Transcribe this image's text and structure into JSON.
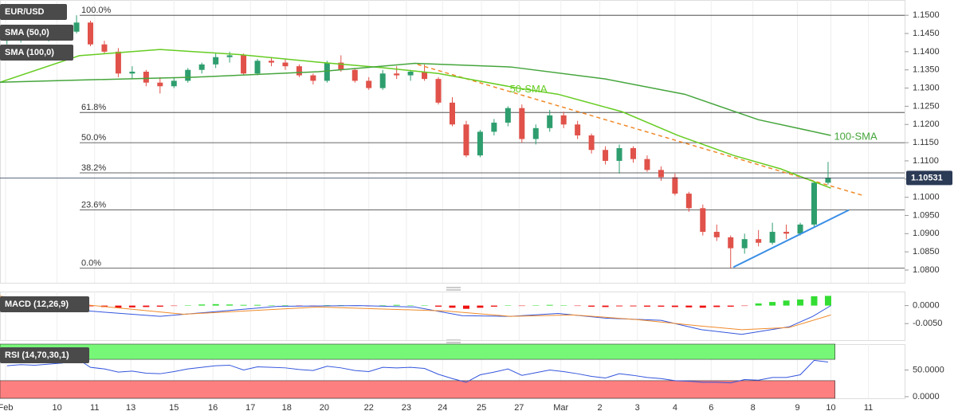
{
  "chart_data": [
    {
      "type": "candlestick",
      "title": "EUR/USD",
      "xlim": [
        -0.5,
        64.5
      ],
      "xticks": [
        {
          "value": -0.1,
          "label": "Feb"
        },
        {
          "value": 3.6,
          "label": "10"
        },
        {
          "value": 6.3,
          "label": "11"
        },
        {
          "value": 8.9,
          "label": "13"
        },
        {
          "value": 12.0,
          "label": "15"
        },
        {
          "value": 14.8,
          "label": "16"
        },
        {
          "value": 17.5,
          "label": "17"
        },
        {
          "value": 20.1,
          "label": "18"
        },
        {
          "value": 22.8,
          "label": "20"
        },
        {
          "value": 26.0,
          "label": "22"
        },
        {
          "value": 28.7,
          "label": "23"
        },
        {
          "value": 31.3,
          "label": "24"
        },
        {
          "value": 34.1,
          "label": "25"
        },
        {
          "value": 36.8,
          "label": "27"
        },
        {
          "value": 39.8,
          "label": "Mar"
        },
        {
          "value": 42.6,
          "label": "2"
        },
        {
          "value": 45.3,
          "label": "3"
        },
        {
          "value": 48.0,
          "label": "4"
        },
        {
          "value": 50.6,
          "label": "6"
        },
        {
          "value": 53.6,
          "label": "8"
        },
        {
          "value": 56.8,
          "label": "9"
        },
        {
          "value": 59.2,
          "label": "10"
        },
        {
          "value": 61.9,
          "label": "11"
        }
      ],
      "ylim": [
        1.0765,
        1.1542
      ],
      "yticks": [
        {
          "value": 1.15,
          "label": "1.1500"
        },
        {
          "value": 1.145,
          "label": "1.1450"
        },
        {
          "value": 1.14,
          "label": "1.1400"
        },
        {
          "value": 1.135,
          "label": "1.1350"
        },
        {
          "value": 1.13,
          "label": "1.1300"
        },
        {
          "value": 1.125,
          "label": "1.1250"
        },
        {
          "value": 1.12,
          "label": "1.1200"
        },
        {
          "value": 1.115,
          "label": "1.1150"
        },
        {
          "value": 1.11,
          "label": "1.1100"
        },
        {
          "value": 1.105,
          "label": "1.1050"
        },
        {
          "value": 1.1,
          "label": "1.1000"
        },
        {
          "value": 1.095,
          "label": "1.0950"
        },
        {
          "value": 1.09,
          "label": "1.0900"
        },
        {
          "value": 1.085,
          "label": "1.0850"
        },
        {
          "value": 1.08,
          "label": "1.0800"
        }
      ],
      "grid": true,
      "up_color": "#2e9e6e",
      "down_color": "#e0524a",
      "open": [
        1.143,
        1.1438,
        1.1442,
        1.144,
        1.1445,
        1.1455,
        1.148,
        1.142,
        1.14,
        1.134,
        1.1345,
        1.1315,
        1.1305,
        1.132,
        1.135,
        1.1365,
        1.1385,
        1.139,
        1.134,
        1.1375,
        1.137,
        1.136,
        1.1335,
        1.132,
        1.137,
        1.135,
        1.132,
        1.13,
        1.134,
        1.1335,
        1.1345,
        1.1325,
        1.126,
        1.12,
        1.1115,
        1.118,
        1.1205,
        1.1245,
        1.116,
        1.119,
        1.1225,
        1.12,
        1.117,
        1.113,
        1.11,
        1.1135,
        1.1105,
        1.1075,
        1.1055,
        1.101,
        1.097,
        1.0905,
        1.089,
        1.086,
        1.0885,
        1.0875,
        1.0905,
        1.09,
        1.0925,
        1.104
      ],
      "high": [
        1.1445,
        1.145,
        1.1455,
        1.1452,
        1.146,
        1.15,
        1.1485,
        1.143,
        1.141,
        1.136,
        1.135,
        1.133,
        1.133,
        1.1355,
        1.137,
        1.1395,
        1.14,
        1.1395,
        1.138,
        1.1385,
        1.138,
        1.1365,
        1.134,
        1.1375,
        1.139,
        1.1355,
        1.133,
        1.135,
        1.136,
        1.135,
        1.1365,
        1.133,
        1.1275,
        1.121,
        1.1185,
        1.1215,
        1.125,
        1.1255,
        1.12,
        1.124,
        1.1235,
        1.121,
        1.1175,
        1.114,
        1.1145,
        1.114,
        1.1115,
        1.1085,
        1.1065,
        1.1015,
        1.098,
        1.0925,
        1.0895,
        1.09,
        1.091,
        1.093,
        1.0925,
        1.093,
        1.1045,
        1.1097
      ],
      "low": [
        1.142,
        1.1425,
        1.143,
        1.1428,
        1.1435,
        1.145,
        1.1415,
        1.1395,
        1.133,
        1.1325,
        1.1305,
        1.1285,
        1.13,
        1.1315,
        1.134,
        1.1355,
        1.137,
        1.1335,
        1.1335,
        1.136,
        1.135,
        1.133,
        1.131,
        1.1315,
        1.1345,
        1.1315,
        1.1295,
        1.1295,
        1.1325,
        1.132,
        1.132,
        1.1255,
        1.1195,
        1.111,
        1.111,
        1.117,
        1.1195,
        1.115,
        1.1145,
        1.118,
        1.119,
        1.116,
        1.112,
        1.109,
        1.1065,
        1.1095,
        1.107,
        1.1045,
        1.1005,
        1.096,
        1.0895,
        1.088,
        1.0805,
        1.0845,
        1.0865,
        1.087,
        1.0885,
        1.0895,
        1.092,
        1.1035
      ],
      "close": [
        1.1438,
        1.1442,
        1.144,
        1.1445,
        1.1455,
        1.148,
        1.142,
        1.14,
        1.134,
        1.1345,
        1.1315,
        1.1305,
        1.132,
        1.135,
        1.1365,
        1.1385,
        1.139,
        1.134,
        1.1375,
        1.137,
        1.136,
        1.1335,
        1.132,
        1.137,
        1.135,
        1.132,
        1.13,
        1.134,
        1.1335,
        1.1345,
        1.1325,
        1.126,
        1.12,
        1.1115,
        1.118,
        1.1205,
        1.1245,
        1.116,
        1.119,
        1.1225,
        1.12,
        1.117,
        1.113,
        1.11,
        1.1135,
        1.1105,
        1.1075,
        1.1055,
        1.101,
        1.097,
        1.0905,
        1.089,
        1.086,
        1.0885,
        1.0875,
        1.0905,
        1.09,
        1.0925,
        1.104,
        1.10531
      ],
      "last_price": 1.10531,
      "series": [
        {
          "name": "SMA (50,0)",
          "label": "50-SMA",
          "color": "#66cc22",
          "x": [
            -0.5,
            5.2,
            11,
            16.7,
            22.4,
            27,
            31,
            36.7,
            39.6,
            44.2,
            48.2,
            52.2,
            55.6,
            59.2
          ],
          "values": [
            1.1316,
            1.1389,
            1.1406,
            1.1392,
            1.1371,
            1.1356,
            1.134,
            1.13,
            1.1283,
            1.1235,
            1.117,
            1.1115,
            1.1078,
            1.1025
          ]
        },
        {
          "name": "SMA (100,0)",
          "label": "100-SMA",
          "color": "#45a53c",
          "x": [
            -0.5,
            5.2,
            13.5,
            22.4,
            29.3,
            36.2,
            43,
            48.7,
            54,
            59.2
          ],
          "values": [
            1.1316,
            1.1322,
            1.133,
            1.1345,
            1.1368,
            1.1358,
            1.1325,
            1.1283,
            1.1213,
            1.117
          ]
        }
      ],
      "trendlines": [
        {
          "color": "#f08a2a",
          "dashed": true,
          "x": [
            29.5,
            61.5
          ],
          "values": [
            1.1365,
            1.1005
          ]
        },
        {
          "color": "#3a8ee6",
          "dashed": false,
          "x": [
            52.2,
            60.5
          ],
          "values": [
            1.0808,
            1.0965
          ]
        }
      ],
      "fib_levels": [
        {
          "label": "100.0%",
          "value": 1.15
        },
        {
          "label": "61.8%",
          "value": 1.1233
        },
        {
          "label": "50.0%",
          "value": 1.115
        },
        {
          "label": "38.2%",
          "value": 1.1067
        },
        {
          "label": "23.6%",
          "value": 1.0965
        },
        {
          "label": "0.0%",
          "value": 1.0805
        }
      ]
    },
    {
      "type": "macd",
      "title": "MACD (12,26,9)",
      "ylim": [
        -0.0096,
        0.0039
      ],
      "yticks": [
        {
          "value": 0,
          "label": "0.0000"
        },
        {
          "value": -0.005,
          "label": "-0.0050"
        }
      ],
      "up_color": "#33dd33",
      "down_color": "#ee1111",
      "histogram": [
        -0.0002,
        -0.0003,
        -0.0002,
        -0.0001,
        0.0001,
        0.0002,
        -0.0002,
        -0.0004,
        -0.0006,
        -0.0005,
        -0.0004,
        -0.0003,
        -0.0001,
        0.0001,
        0.0003,
        0.0004,
        0.0003,
        0.0002,
        0.0002,
        0.0001,
        0.0001,
        -0.0001,
        -0.0002,
        0.0001,
        0.0001,
        -0.0001,
        -0.0002,
        0.0001,
        0.0002,
        0.0001,
        0.0001,
        -0.0003,
        -0.0006,
        -0.0009,
        -0.0006,
        -0.0003,
        0.0001,
        -0.0001,
        0.0001,
        0.0002,
        0.0001,
        -0.0001,
        -0.0003,
        -0.0004,
        -0.0002,
        -0.0002,
        -0.0003,
        -0.0003,
        -0.0004,
        -0.0005,
        -0.0006,
        -0.0004,
        -0.0003,
        -0.0001,
        0.0006,
        0.001,
        0.0014,
        0.0017,
        0.0026,
        0.0027
      ],
      "series": [
        {
          "color": "#3355dd",
          "x": [
            -0.5,
            5.2,
            11,
            19.5,
            25.3,
            29.3,
            32.7,
            36.2,
            39.6,
            43,
            47,
            49.9,
            52.8,
            56.2,
            57.9,
            59.2
          ],
          "values": [
            0.0002,
            -0.0013,
            -0.003,
            -0.0002,
            0,
            -0.0004,
            -0.0028,
            -0.003,
            -0.0022,
            -0.0035,
            -0.0041,
            -0.0067,
            -0.008,
            -0.0059,
            -0.003,
            0
          ]
        },
        {
          "color": "#f08a2a",
          "x": [
            -0.5,
            5.2,
            12.7,
            22.4,
            31.5,
            36.2,
            40.7,
            45.3,
            49.9,
            52.8,
            56.2,
            59.2
          ],
          "values": [
            0.0026,
            0.0004,
            -0.0024,
            -0.0004,
            -0.0015,
            -0.003,
            -0.0026,
            -0.0039,
            -0.0057,
            -0.0067,
            -0.0061,
            -0.0026
          ]
        }
      ]
    },
    {
      "type": "rsi",
      "title": "RSI (14,70,30,1)",
      "ylim": [
        -3,
        98.5
      ],
      "yticks": [
        {
          "value": 50,
          "label": "50.0000"
        },
        {
          "value": 0,
          "label": "0.0000"
        }
      ],
      "overbought": 70,
      "oversold": 30,
      "overbought_color": "#77f777",
      "oversold_color": "#fd7f7f",
      "color": "#3355dd",
      "values": [
        58,
        60,
        59,
        61,
        63,
        72,
        55,
        52,
        46,
        48,
        44,
        43,
        47,
        52,
        55,
        58,
        59,
        50,
        56,
        55,
        54,
        51,
        49,
        57,
        54,
        49,
        47,
        55,
        54,
        55,
        53,
        42,
        34,
        27,
        41,
        46,
        52,
        40,
        45,
        50,
        47,
        43,
        38,
        35,
        43,
        40,
        36,
        34,
        30,
        29,
        27,
        27,
        26,
        32,
        31,
        36,
        36,
        41,
        68,
        65
      ]
    }
  ]
}
